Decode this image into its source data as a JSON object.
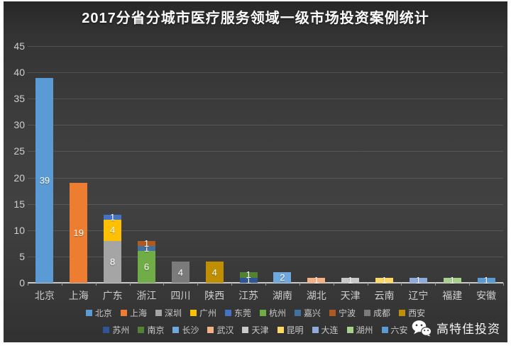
{
  "chart_data": {
    "type": "bar",
    "stacked": true,
    "title": "2017分省分城市医疗服务领域一级市场投资案例统计",
    "ylim": [
      0,
      45
    ],
    "ytick_step": 5,
    "grid": true,
    "legend_position": "bottom",
    "categories": [
      "北京",
      "上海",
      "广东",
      "浙江",
      "四川",
      "陕西",
      "江苏",
      "湖南",
      "湖北",
      "天津",
      "云南",
      "辽宁",
      "福建",
      "安徽"
    ],
    "stacks": [
      {
        "province": "北京",
        "segments": [
          {
            "city": "北京",
            "value": 39,
            "color": "#5B9BD5"
          }
        ]
      },
      {
        "province": "上海",
        "segments": [
          {
            "city": "上海",
            "value": 19,
            "color": "#ED7D31"
          }
        ]
      },
      {
        "province": "广东",
        "segments": [
          {
            "city": "深圳",
            "value": 8,
            "color": "#A5A5A5"
          },
          {
            "city": "广州",
            "value": 4,
            "color": "#FFC000"
          },
          {
            "city": "东莞",
            "value": 1,
            "color": "#4472C4"
          }
        ]
      },
      {
        "province": "浙江",
        "segments": [
          {
            "city": "杭州",
            "value": 6,
            "color": "#70AD47"
          },
          {
            "city": "嘉兴",
            "value": 1,
            "color": "#41719C"
          },
          {
            "city": "宁波",
            "value": 1,
            "color": "#AE5A21"
          }
        ]
      },
      {
        "province": "四川",
        "segments": [
          {
            "city": "成都",
            "value": 4,
            "color": "#7B7B7B"
          }
        ]
      },
      {
        "province": "陕西",
        "segments": [
          {
            "city": "西安",
            "value": 4,
            "color": "#BF8F00"
          }
        ]
      },
      {
        "province": "江苏",
        "segments": [
          {
            "city": "苏州",
            "value": 1,
            "color": "#2F5597"
          },
          {
            "city": "南京",
            "value": 1,
            "color": "#548235"
          }
        ]
      },
      {
        "province": "湖南",
        "segments": [
          {
            "city": "长沙",
            "value": 2,
            "color": "#6FA8DC"
          }
        ]
      },
      {
        "province": "湖北",
        "segments": [
          {
            "city": "武汉",
            "value": 1,
            "color": "#F4B183"
          }
        ]
      },
      {
        "province": "天津",
        "segments": [
          {
            "city": "天津",
            "value": 1,
            "color": "#C9C9C9"
          }
        ]
      },
      {
        "province": "云南",
        "segments": [
          {
            "city": "昆明",
            "value": 1,
            "color": "#FFD966"
          }
        ]
      },
      {
        "province": "辽宁",
        "segments": [
          {
            "city": "大连",
            "value": 1,
            "color": "#8FAADC"
          }
        ]
      },
      {
        "province": "福建",
        "segments": [
          {
            "city": "湖州",
            "value": 1,
            "color": "#A9D18E"
          }
        ]
      },
      {
        "province": "安徽",
        "segments": [
          {
            "city": "六安",
            "value": 1,
            "color": "#5B9BD5"
          }
        ]
      }
    ],
    "legend_rows": [
      [
        {
          "label": "北京",
          "color": "#5B9BD5"
        },
        {
          "label": "上海",
          "color": "#ED7D31"
        },
        {
          "label": "深圳",
          "color": "#A5A5A5"
        },
        {
          "label": "广州",
          "color": "#FFC000"
        },
        {
          "label": "东莞",
          "color": "#4472C4"
        },
        {
          "label": "杭州",
          "color": "#70AD47"
        },
        {
          "label": "嘉兴",
          "color": "#41719C"
        },
        {
          "label": "宁波",
          "color": "#AE5A21"
        },
        {
          "label": "成都",
          "color": "#7B7B7B"
        },
        {
          "label": "西安",
          "color": "#BF8F00"
        }
      ],
      [
        {
          "label": "苏州",
          "color": "#2F5597"
        },
        {
          "label": "南京",
          "color": "#548235"
        },
        {
          "label": "长沙",
          "color": "#6FA8DC"
        },
        {
          "label": "武汉",
          "color": "#F4B183"
        },
        {
          "label": "天津",
          "color": "#C9C9C9"
        },
        {
          "label": "昆明",
          "color": "#FFD966"
        },
        {
          "label": "大连",
          "color": "#8FAADC"
        },
        {
          "label": "湖州",
          "color": "#A9D18E"
        },
        {
          "label": "六安",
          "color": "#5B9BD5"
        }
      ]
    ]
  },
  "watermark": {
    "text": "高特佳投资",
    "icon": "wechat-icon"
  }
}
